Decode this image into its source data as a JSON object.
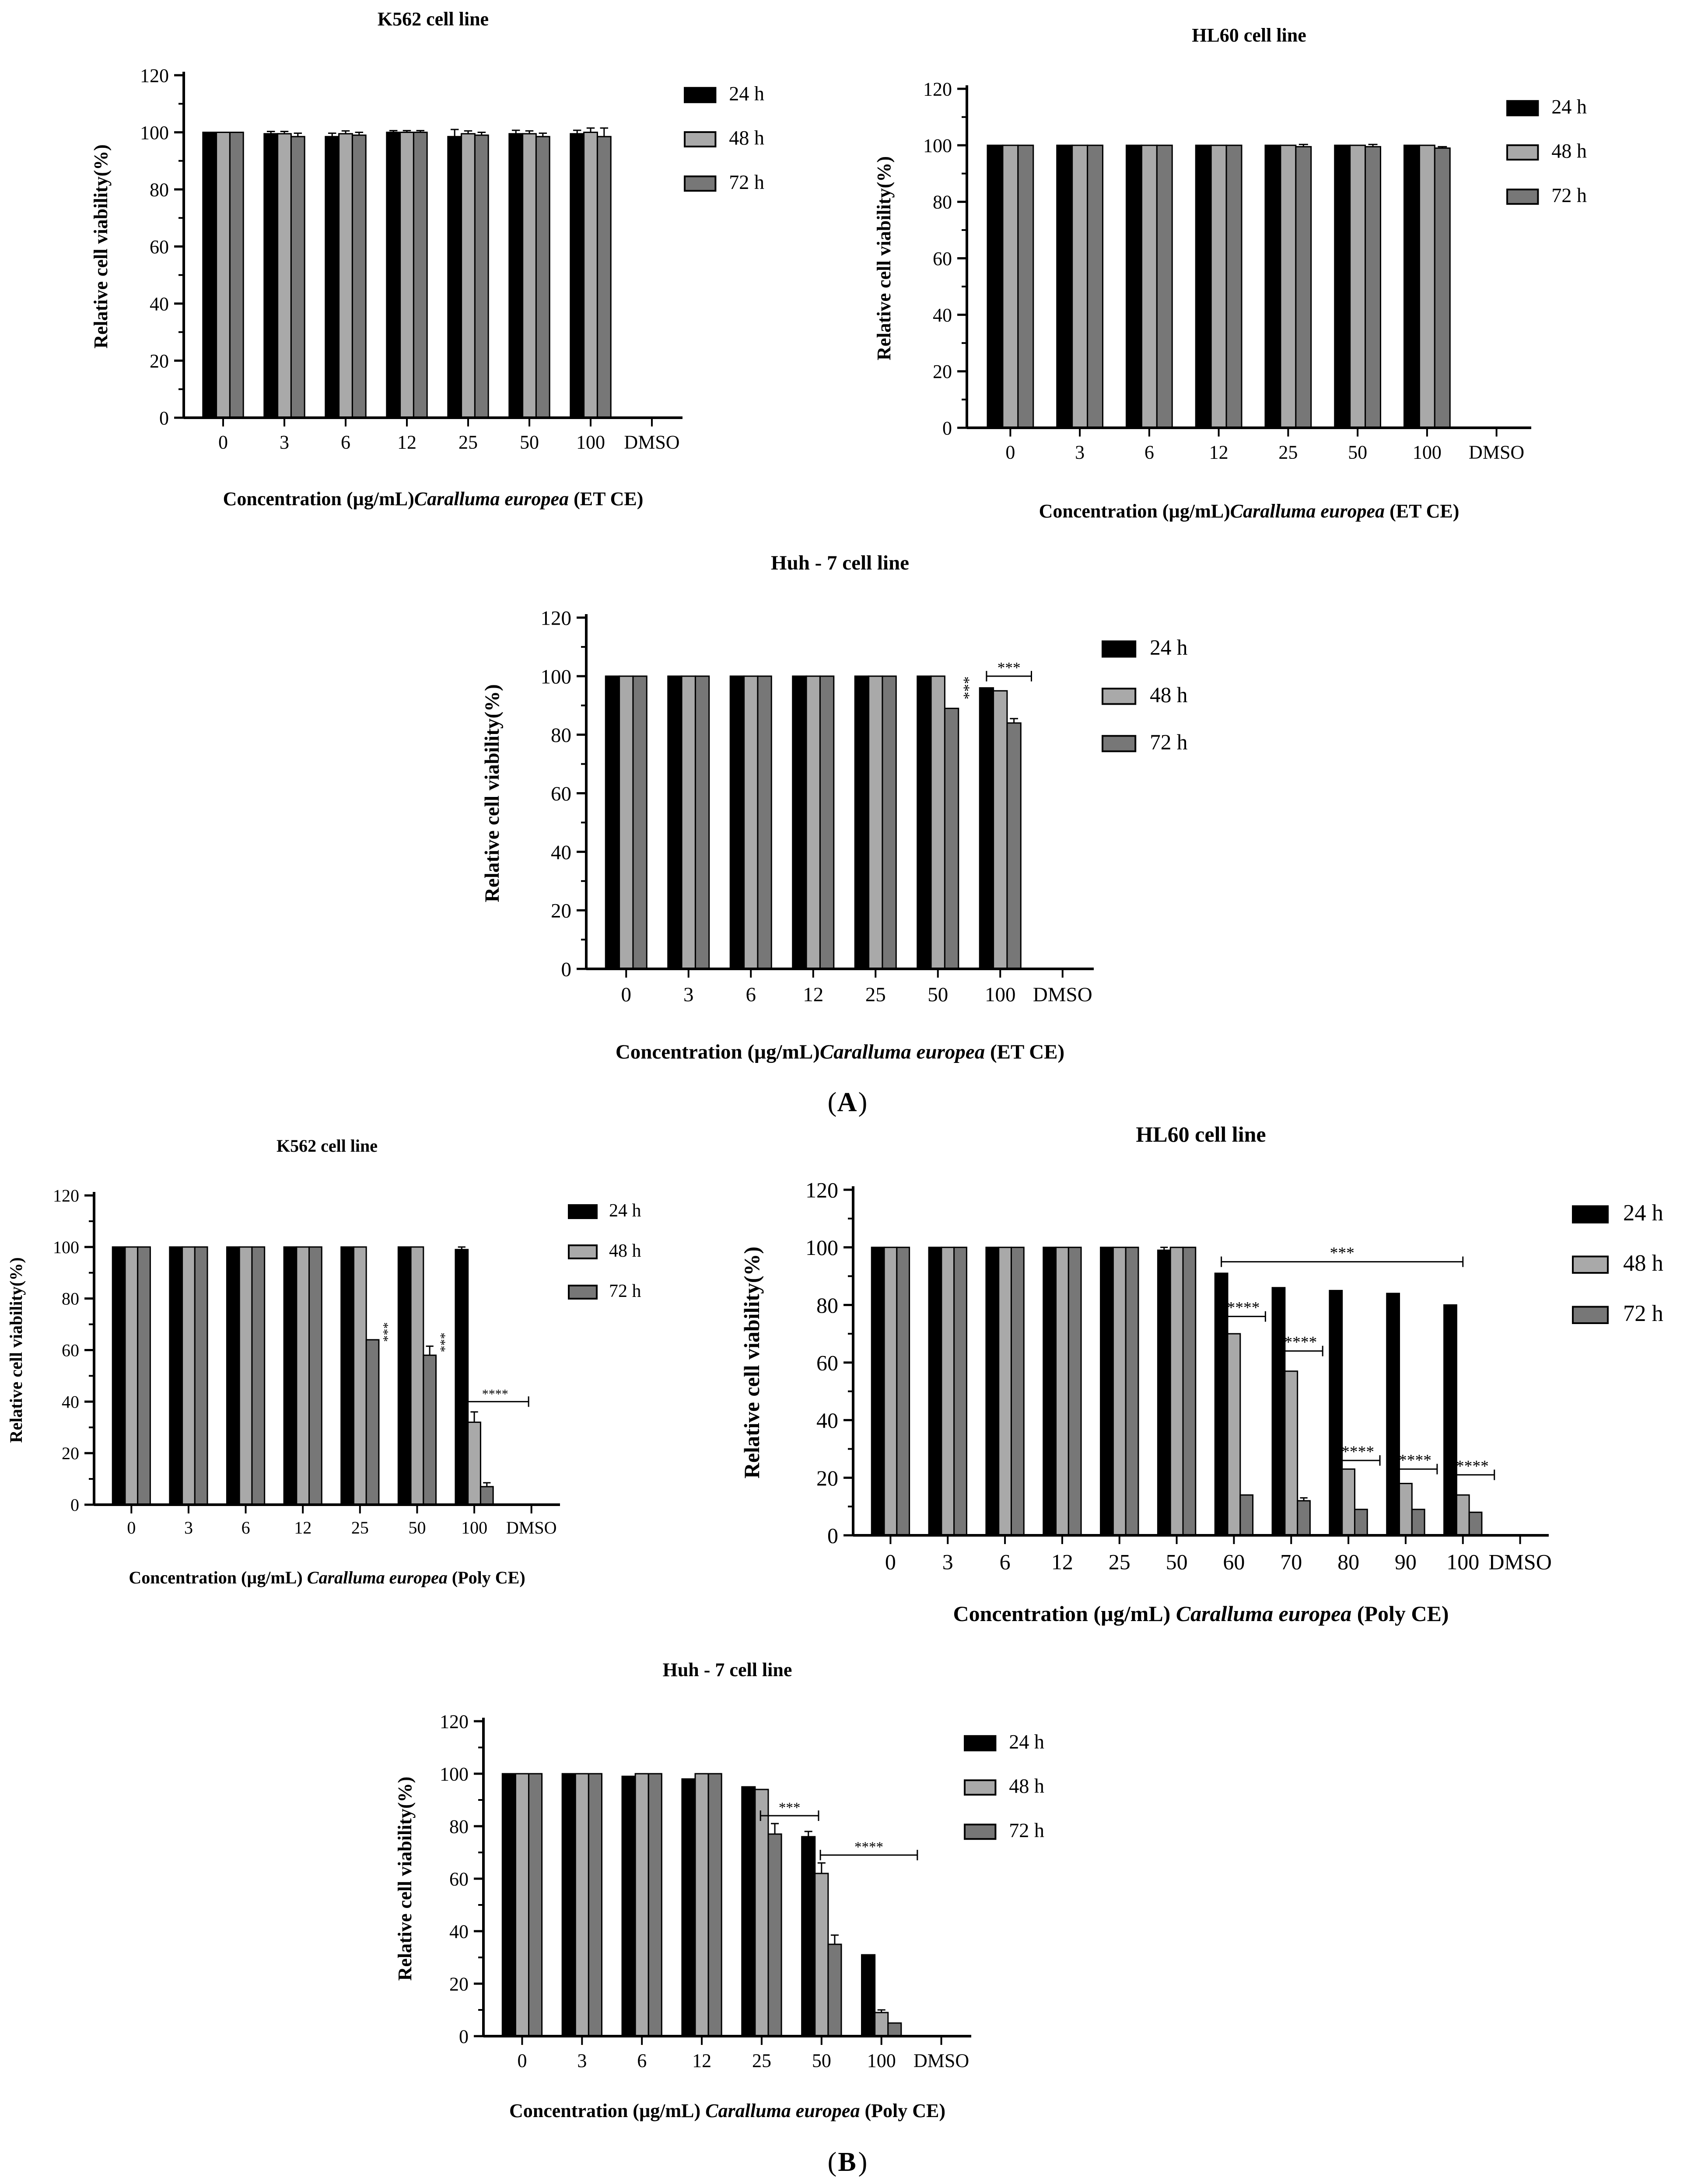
{
  "figure": {
    "label_A": "A",
    "label_B": "B"
  },
  "colors": {
    "h24": "#000000",
    "h48": "#a9a9a9",
    "h72": "#777777",
    "axis": "#000000"
  },
  "legend_labels": [
    "24 h",
    "48 h",
    "72 h"
  ],
  "chart_data": [
    {
      "id": "A1",
      "type": "bar",
      "title": "K562 cell line",
      "ylabel": "Relative cell viability(%)",
      "xlabel_parts": [
        "Concentration (µg/mL)",
        "Caralluma europea",
        " (ET CE)"
      ],
      "ylim": [
        0,
        120
      ],
      "yticks": [
        0,
        20,
        40,
        60,
        80,
        100,
        120
      ],
      "categories": [
        "0",
        "3",
        "6",
        "12",
        "25",
        "50",
        "100",
        "DMSO"
      ],
      "series": [
        {
          "name": "24 h",
          "values": [
            100,
            99.5,
            98.5,
            100,
            98.5,
            99.5,
            99.5,
            0
          ],
          "errors": [
            0,
            0.8,
            1.2,
            0.6,
            2.5,
            1.2,
            1.2,
            0
          ]
        },
        {
          "name": "48 h",
          "values": [
            100,
            99.5,
            99.5,
            100,
            99.5,
            99.5,
            100,
            0
          ],
          "errors": [
            0,
            0.8,
            1.0,
            0.6,
            1.0,
            1.0,
            1.5,
            0
          ]
        },
        {
          "name": "72 h",
          "values": [
            100,
            98.5,
            99,
            100,
            99,
            98.5,
            98.5,
            0
          ],
          "errors": [
            0,
            1.2,
            1.0,
            0.6,
            1.0,
            1.2,
            3.0,
            0
          ]
        }
      ],
      "annotations": []
    },
    {
      "id": "A2",
      "type": "bar",
      "title": "HL60 cell line",
      "ylabel": "Relative cell viability(%)",
      "xlabel_parts": [
        "Concentration (µg/mL)",
        "Caralluma europea",
        " (ET CE)"
      ],
      "ylim": [
        0,
        120
      ],
      "yticks": [
        0,
        20,
        40,
        60,
        80,
        100,
        120
      ],
      "categories": [
        "0",
        "3",
        "6",
        "12",
        "25",
        "50",
        "100",
        "DMSO"
      ],
      "series": [
        {
          "name": "24 h",
          "values": [
            100,
            100,
            100,
            100,
            100,
            100,
            100,
            0
          ],
          "errors": [
            0,
            0,
            0,
            0,
            0,
            0,
            0,
            0
          ]
        },
        {
          "name": "48 h",
          "values": [
            100,
            100,
            100,
            100,
            100,
            100,
            100,
            0
          ],
          "errors": [
            0,
            0,
            0,
            0,
            0,
            0,
            0,
            0
          ]
        },
        {
          "name": "72 h",
          "values": [
            100,
            100,
            100,
            100,
            99.5,
            99.5,
            99,
            0
          ],
          "errors": [
            0,
            0,
            0,
            0,
            0.8,
            0.8,
            0.5,
            0
          ]
        }
      ],
      "annotations": []
    },
    {
      "id": "A3",
      "type": "bar",
      "title": "Huh - 7 cell line",
      "ylabel": "Relative cell viability(%)",
      "xlabel_parts": [
        "Concentration (µg/mL)",
        "Caralluma europea",
        " (ET CE)"
      ],
      "ylim": [
        0,
        120
      ],
      "yticks": [
        0,
        20,
        40,
        60,
        80,
        100,
        120
      ],
      "categories": [
        "0",
        "3",
        "6",
        "12",
        "25",
        "50",
        "100",
        "DMSO"
      ],
      "series": [
        {
          "name": "24 h",
          "values": [
            100,
            100,
            100,
            100,
            100,
            100,
            96,
            0
          ],
          "errors": [
            0,
            0,
            0,
            0,
            0,
            0,
            0,
            0
          ]
        },
        {
          "name": "48 h",
          "values": [
            100,
            100,
            100,
            100,
            100,
            100,
            95,
            0
          ],
          "errors": [
            0,
            0,
            0,
            0,
            0,
            0,
            0,
            0
          ]
        },
        {
          "name": "72 h",
          "values": [
            100,
            100,
            100,
            100,
            100,
            89,
            84,
            0
          ],
          "errors": [
            0,
            0,
            0,
            0,
            0,
            0,
            1.5,
            0
          ]
        }
      ],
      "annotations": [
        {
          "text": "***",
          "kind": "vertical",
          "cat": 5,
          "y": 96
        },
        {
          "text": "***",
          "kind": "bracket",
          "from": 6,
          "to": 6.5,
          "y": 100
        }
      ]
    },
    {
      "id": "B1",
      "type": "bar",
      "title": "K562 cell line",
      "ylabel": "Relative cell viability(%)",
      "xlabel_parts": [
        "Concentration (µg/mL) ",
        "Caralluma europea",
        " (Poly CE)"
      ],
      "ylim": [
        0,
        120
      ],
      "yticks": [
        0,
        20,
        40,
        60,
        80,
        100,
        120
      ],
      "categories": [
        "0",
        "3",
        "6",
        "12",
        "25",
        "50",
        "100",
        "DMSO"
      ],
      "series": [
        {
          "name": "24 h",
          "values": [
            100,
            100,
            100,
            100,
            100,
            100,
            99,
            0
          ],
          "errors": [
            0,
            0,
            0,
            0,
            0,
            0,
            1.0,
            0
          ]
        },
        {
          "name": "48 h",
          "values": [
            100,
            100,
            100,
            100,
            100,
            100,
            32,
            0
          ],
          "errors": [
            0,
            0,
            0,
            0,
            0,
            0,
            4.0,
            0
          ]
        },
        {
          "name": "72 h",
          "values": [
            100,
            100,
            100,
            100,
            64,
            58,
            7,
            0
          ],
          "errors": [
            0,
            0,
            0,
            0,
            0,
            3.5,
            1.5,
            0
          ]
        }
      ],
      "annotations": [
        {
          "text": "***",
          "kind": "vertical",
          "cat": 4,
          "y": 67
        },
        {
          "text": "***",
          "kind": "vertical",
          "cat": 5,
          "y": 63
        },
        {
          "text": "****",
          "kind": "bracket",
          "from": 6,
          "to": 6.95,
          "y": 40
        }
      ]
    },
    {
      "id": "B2",
      "type": "bar",
      "title": "HL60 cell line",
      "ylabel": "Relative cell viability(%)",
      "xlabel_parts": [
        "Concentration (µg/mL) ",
        "Caralluma europea",
        " (Poly CE)"
      ],
      "ylim": [
        0,
        120
      ],
      "yticks": [
        0,
        20,
        40,
        60,
        80,
        100,
        120
      ],
      "categories": [
        "0",
        "3",
        "6",
        "12",
        "25",
        "50",
        "60",
        "70",
        "80",
        "90",
        "100",
        "DMSO"
      ],
      "series": [
        {
          "name": "24 h",
          "values": [
            100,
            100,
            100,
            100,
            100,
            99,
            91,
            86,
            85,
            84,
            80,
            0
          ],
          "errors": [
            0,
            0,
            0,
            0,
            0,
            1.0,
            0,
            0,
            0,
            0,
            0,
            0
          ]
        },
        {
          "name": "48 h",
          "values": [
            100,
            100,
            100,
            100,
            100,
            100,
            70,
            57,
            23,
            18,
            14,
            0
          ],
          "errors": [
            0,
            0,
            0,
            0,
            0,
            0,
            0,
            0,
            0,
            0,
            0,
            0
          ]
        },
        {
          "name": "72 h",
          "values": [
            100,
            100,
            100,
            100,
            100,
            100,
            14,
            12,
            9,
            9,
            8,
            0
          ],
          "errors": [
            0,
            0,
            0,
            0,
            0,
            0,
            0,
            1.0,
            0,
            0,
            0,
            0
          ]
        }
      ],
      "annotations": [
        {
          "text": "***",
          "kind": "bracket",
          "from": 6,
          "to": 10,
          "y": 95
        },
        {
          "text": "****",
          "kind": "bracket",
          "from": 6,
          "to": 6.55,
          "y": 76
        },
        {
          "text": "****",
          "kind": "bracket",
          "from": 7,
          "to": 7.55,
          "y": 64
        },
        {
          "text": "****",
          "kind": "bracket",
          "from": 8,
          "to": 8.55,
          "y": 26
        },
        {
          "text": "****",
          "kind": "bracket",
          "from": 9,
          "to": 9.55,
          "y": 23
        },
        {
          "text": "****",
          "kind": "bracket",
          "from": 10,
          "to": 10.55,
          "y": 21
        }
      ]
    },
    {
      "id": "B3",
      "type": "bar",
      "title": "Huh - 7 cell line",
      "ylabel": "Relative cell viability(%)",
      "xlabel_parts": [
        "Concentration (µg/mL) ",
        "Caralluma europea",
        " (Poly CE)"
      ],
      "ylim": [
        0,
        120
      ],
      "yticks": [
        0,
        20,
        40,
        60,
        80,
        100,
        120
      ],
      "categories": [
        "0",
        "3",
        "6",
        "12",
        "25",
        "50",
        "100",
        "DMSO"
      ],
      "series": [
        {
          "name": "24 h",
          "values": [
            100,
            100,
            99,
            98,
            95,
            76,
            31,
            0
          ],
          "errors": [
            0,
            0,
            0,
            0,
            0,
            2.0,
            0,
            0
          ]
        },
        {
          "name": "48 h",
          "values": [
            100,
            100,
            100,
            100,
            94,
            62,
            9,
            0
          ],
          "errors": [
            0,
            0,
            0,
            0,
            0,
            4.0,
            1.0,
            0
          ]
        },
        {
          "name": "72 h",
          "values": [
            100,
            100,
            100,
            100,
            77,
            35,
            5,
            0
          ],
          "errors": [
            0,
            0,
            0,
            0,
            4.0,
            3.5,
            0,
            0
          ]
        }
      ],
      "annotations": [
        {
          "text": "***",
          "kind": "bracket",
          "from": 4.2,
          "to": 4.95,
          "y": 84
        },
        {
          "text": "****",
          "kind": "bracket",
          "from": 5.2,
          "to": 6.6,
          "y": 69
        }
      ]
    }
  ]
}
